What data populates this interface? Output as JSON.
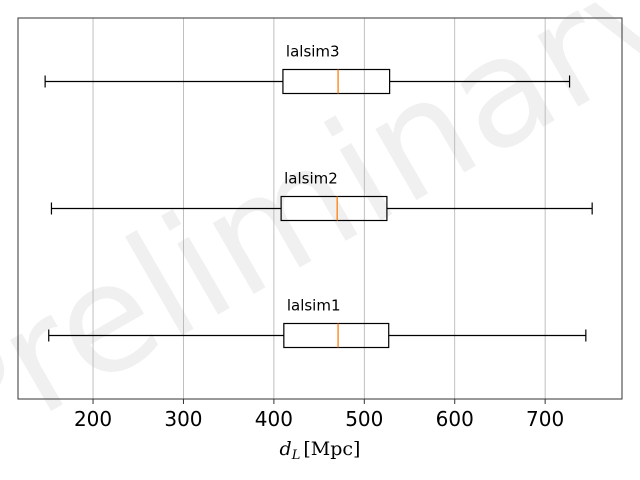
{
  "watermark": "Preliminary",
  "chart_data": {
    "type": "boxplot",
    "orientation": "horizontal",
    "xlabel": "d_L [Mpc]",
    "xlabel_parts": {
      "base": "d",
      "sub": "L",
      "unit": "[Mpc]"
    },
    "xlim": [
      117,
      785
    ],
    "xticks": [
      200,
      300,
      400,
      500,
      600,
      700
    ],
    "grid": "vertical",
    "median_color": "#ff7f0e",
    "series": [
      {
        "name": "lalsim3",
        "whisker_low": 147,
        "q1": 410,
        "median": 471,
        "q3": 528,
        "whisker_high": 727
      },
      {
        "name": "lalsim2",
        "whisker_low": 154,
        "q1": 408,
        "median": 470,
        "q3": 525,
        "whisker_high": 752
      },
      {
        "name": "lalsim1",
        "whisker_low": 151,
        "q1": 411,
        "median": 471,
        "q3": 527,
        "whisker_high": 745
      }
    ]
  }
}
